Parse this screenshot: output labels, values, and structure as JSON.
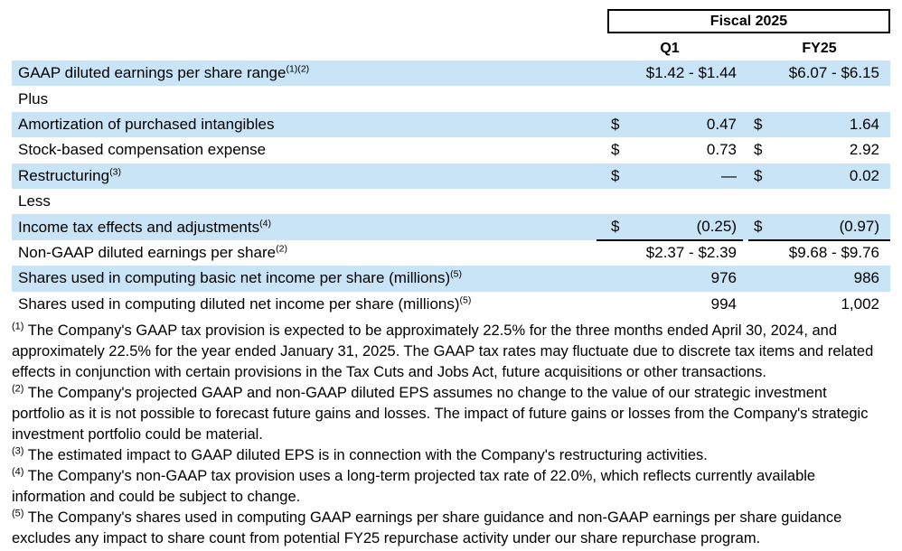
{
  "table": {
    "period_header": "Fiscal 2025",
    "columns": [
      "Q1",
      "FY25"
    ],
    "rows": [
      {
        "label": "GAAP diluted earnings per share range",
        "sup": "(1)(2)",
        "style": "span",
        "shaded": true,
        "underline": false,
        "q1": "$1.42 - $1.44",
        "fy25": "$6.07 - $6.15"
      },
      {
        "label": "Plus",
        "sup": "",
        "style": "span",
        "shaded": false,
        "underline": false,
        "q1": "",
        "fy25": ""
      },
      {
        "label": "Amortization of purchased intangibles",
        "sup": "",
        "style": "money",
        "shaded": true,
        "underline": false,
        "q1_dollar": "$",
        "q1": "0.47",
        "fy25_dollar": "$",
        "fy25": "1.64"
      },
      {
        "label": "Stock-based compensation expense",
        "sup": "",
        "style": "money",
        "shaded": false,
        "underline": false,
        "q1_dollar": "$",
        "q1": "0.73",
        "fy25_dollar": "$",
        "fy25": "2.92"
      },
      {
        "label": "Restructuring",
        "sup": "(3)",
        "style": "money",
        "shaded": true,
        "underline": false,
        "q1_dollar": "$",
        "q1": "—",
        "fy25_dollar": "$",
        "fy25": "0.02"
      },
      {
        "label": "Less",
        "sup": "",
        "style": "span",
        "shaded": false,
        "underline": false,
        "q1": "",
        "fy25": ""
      },
      {
        "label": "Income tax effects and adjustments",
        "sup": "(4)",
        "style": "money",
        "shaded": true,
        "underline": true,
        "q1_dollar": "$",
        "q1": "(0.25)",
        "fy25_dollar": "$",
        "fy25": "(0.97)"
      },
      {
        "label": "Non-GAAP diluted earnings per share",
        "sup": "(2)",
        "style": "span",
        "shaded": false,
        "underline": false,
        "q1": "$2.37 - $2.39",
        "fy25": "$9.68 - $9.76"
      },
      {
        "label": "Shares used in computing basic net income per share (millions)",
        "sup": "(5)",
        "style": "span",
        "shaded": true,
        "underline": false,
        "q1": "976",
        "fy25": "986"
      },
      {
        "label": "Shares used in computing diluted net income per share (millions)",
        "sup": "(5)",
        "style": "span",
        "shaded": false,
        "underline": false,
        "q1": "994",
        "fy25": "1,002"
      }
    ]
  },
  "footnotes": [
    {
      "marker": "(1)",
      "text": "The Company's GAAP tax provision is expected to be approximately 22.5% for the three months ended April 30, 2024, and approximately 22.5% for the year ended January 31, 2025. The GAAP tax rates may fluctuate due to discrete tax items and related effects in conjunction with certain provisions in the Tax Cuts and Jobs Act, future acquisitions or other transactions."
    },
    {
      "marker": "(2)",
      "text": "The Company's projected GAAP and non-GAAP diluted EPS assumes no change to the value of our strategic investment portfolio as it is not possible to forecast future gains and losses. The impact of future gains or losses from the Company's strategic investment portfolio could be material."
    },
    {
      "marker": "(3)",
      "text": "The estimated impact to GAAP diluted EPS is in connection with the Company's restructuring activities."
    },
    {
      "marker": "(4)",
      "text": "The Company's non-GAAP tax provision uses a long-term projected tax rate of 22.0%, which reflects currently available information and could be subject to change."
    },
    {
      "marker": "(5)",
      "text": "The Company's shares used in computing GAAP earnings per share guidance and non-GAAP earnings per share guidance excludes any impact to share count from potential FY25 repurchase activity under our share repurchase program."
    }
  ],
  "colors": {
    "row_shade": "#C9E4F7",
    "border": "#000000",
    "text": "#000000"
  }
}
